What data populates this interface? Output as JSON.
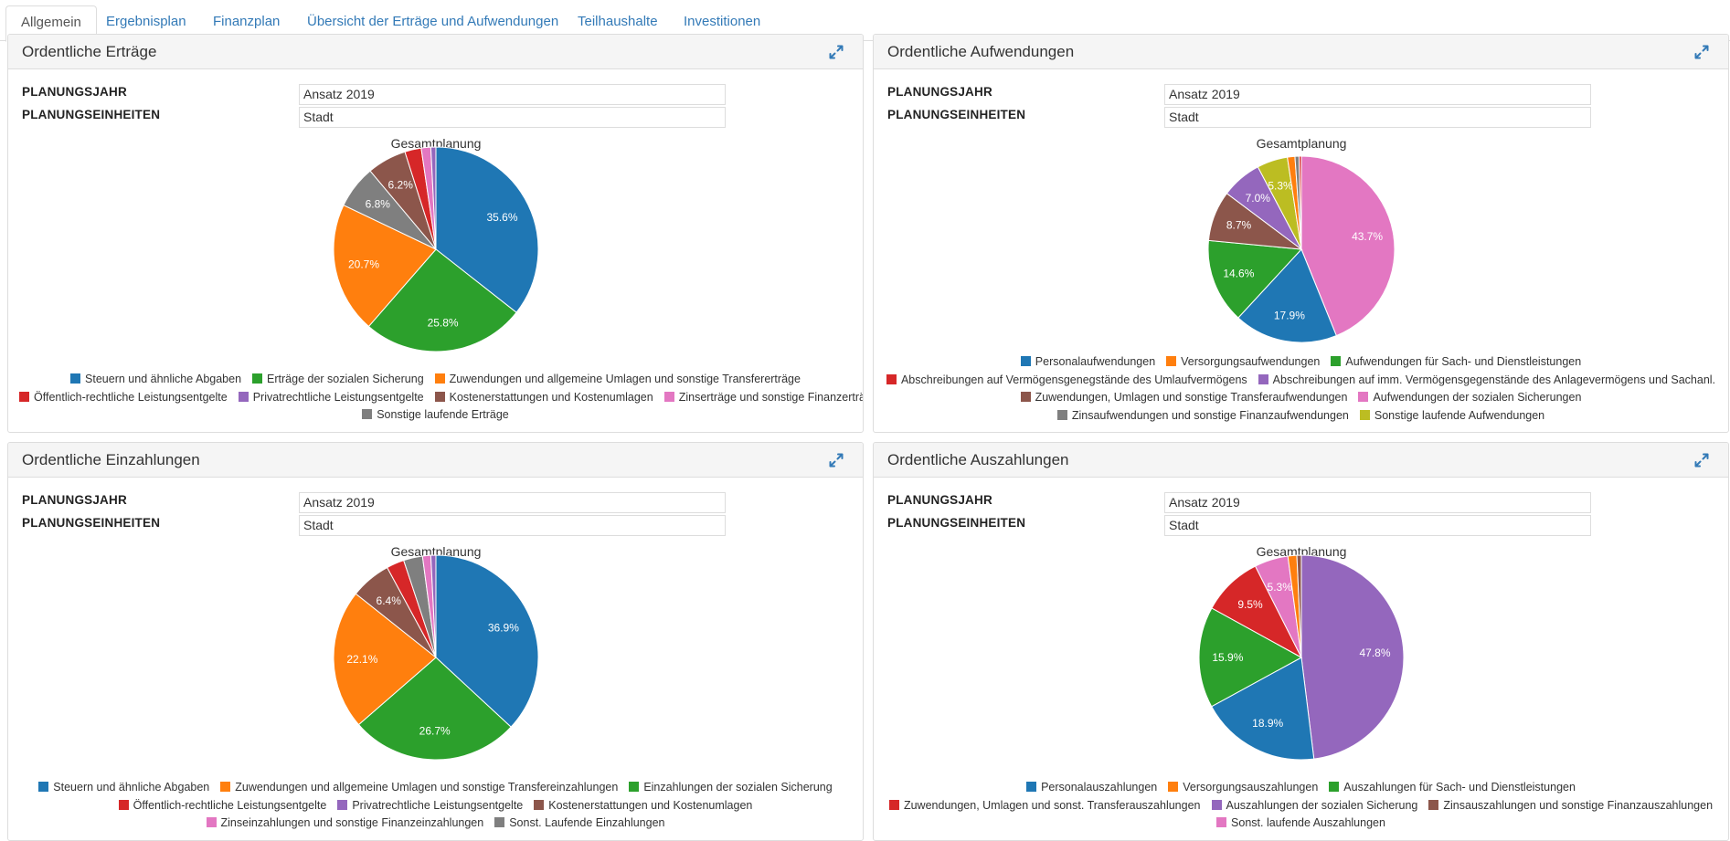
{
  "tabs": [
    {
      "label": "Allgemein",
      "active": true
    },
    {
      "label": "Ergebnisplan",
      "active": false
    },
    {
      "label": "Finanzplan",
      "active": false
    },
    {
      "label": "Übersicht der Erträge und Aufwendungen",
      "active": false
    },
    {
      "label": "Teilhaushalte",
      "active": false
    },
    {
      "label": "Investitionen",
      "active": false
    }
  ],
  "fields": {
    "year_label": "PLANUNGSJAHR",
    "units_label": "PLANUNGSEINHEITEN"
  },
  "icons": {
    "expand": "expand-arrows-icon"
  },
  "colors": {
    "accent": "#337ab7"
  },
  "panels": [
    {
      "title": "Ordentliche Erträge",
      "year_value": "Ansatz 2019",
      "units_value": "Stadt",
      "chart_data": {
        "type": "pie",
        "title": "Gesamtplanung",
        "legend_rows": [
          [
            0,
            1,
            2
          ],
          [
            3,
            4,
            5,
            6
          ],
          [
            7
          ]
        ],
        "slices": [
          {
            "name": "Steuern und ähnliche Abgaben",
            "value": 35.6,
            "label": "35.6%",
            "color": "#1f77b4"
          },
          {
            "name": "Erträge der sozialen Sicherung",
            "value": 25.8,
            "label": "25.8%",
            "color": "#2ca02c"
          },
          {
            "name": "Zuwendungen und allgemeine Umlagen und sonstige Transfererträge",
            "value": 20.7,
            "label": "20.7%",
            "color": "#ff7f0e"
          },
          {
            "name": "Öffentlich-rechtliche Leistungsentgelte",
            "value": 2.6,
            "label": "",
            "color": "#d62728"
          },
          {
            "name": "Privatrechtliche Leistungsentgelte",
            "value": 0.8,
            "label": "",
            "color": "#9467bd"
          },
          {
            "name": "Kostenerstattungen und Kostenumlagen",
            "value": 6.2,
            "label": "6.2%",
            "color": "#8c564b"
          },
          {
            "name": "Zinserträge und sonstige Finanzerträge",
            "value": 1.5,
            "label": "",
            "color": "#e377c2"
          },
          {
            "name": "Sonstige laufende Erträge",
            "value": 6.8,
            "label": "6.8%",
            "color": "#7f7f7f"
          }
        ],
        "slice_order": [
          0,
          1,
          2,
          7,
          5,
          3,
          6,
          4
        ]
      }
    },
    {
      "title": "Ordentliche Aufwendungen",
      "year_value": "Ansatz 2019",
      "units_value": "Stadt",
      "chart_data": {
        "type": "pie",
        "title": "Gesamtplanung",
        "legend_rows": [
          [
            0,
            1,
            2
          ],
          [
            3,
            4
          ],
          [
            5,
            6
          ],
          [
            7,
            8
          ]
        ],
        "slices": [
          {
            "name": "Personalaufwendungen",
            "value": 17.9,
            "label": "17.9%",
            "color": "#1f77b4"
          },
          {
            "name": "Versorgungsaufwendungen",
            "value": 1.3,
            "label": "",
            "color": "#ff7f0e"
          },
          {
            "name": "Aufwendungen für Sach- und Dienstleistungen",
            "value": 14.6,
            "label": "14.6%",
            "color": "#2ca02c"
          },
          {
            "name": "Abschreibungen auf Vermögensgenegstände des Umlaufvermögens",
            "value": 0.4,
            "label": "",
            "color": "#d62728"
          },
          {
            "name": "Abschreibungen auf imm. Vermögensgegenstände des Anlagevermögens und Sachanl.",
            "value": 7.0,
            "label": "7.0%",
            "color": "#9467bd"
          },
          {
            "name": "Zuwendungen, Umlagen und sonstige Transferaufwendungen",
            "value": 8.7,
            "label": "8.7%",
            "color": "#8c564b"
          },
          {
            "name": "Aufwendungen der sozialen Sicherungen",
            "value": 43.7,
            "label": "43.7%",
            "color": "#e377c2"
          },
          {
            "name": "Zinsaufwendungen und sonstige Finanzaufwendungen",
            "value": 0.7,
            "label": "",
            "color": "#7f7f7f"
          },
          {
            "name": "Sonstige laufende Aufwendungen",
            "value": 5.3,
            "label": "5.3%",
            "color": "#bcbd22"
          }
        ],
        "slice_order": [
          6,
          0,
          2,
          5,
          4,
          8,
          1,
          7,
          3
        ]
      }
    },
    {
      "title": "Ordentliche Einzahlungen",
      "year_value": "Ansatz 2019",
      "units_value": "Stadt",
      "chart_data": {
        "type": "pie",
        "title": "Gesamtplanung",
        "legend_rows": [
          [
            0,
            1,
            2
          ],
          [
            3,
            4,
            5
          ],
          [
            6,
            7
          ]
        ],
        "slices": [
          {
            "name": "Steuern und ähnliche Abgaben",
            "value": 36.9,
            "label": "36.9%",
            "color": "#1f77b4"
          },
          {
            "name": "Zuwendungen und allgemeine Umlagen und sonstige Transfereinzahlungen",
            "value": 22.1,
            "label": "22.1%",
            "color": "#ff7f0e"
          },
          {
            "name": "Einzahlungen der sozialen Sicherung",
            "value": 26.7,
            "label": "26.7%",
            "color": "#2ca02c"
          },
          {
            "name": "Öffentlich-rechtliche Leistungsentgelte",
            "value": 2.8,
            "label": "",
            "color": "#d62728"
          },
          {
            "name": "Privatrechtliche Leistungsentgelte",
            "value": 0.8,
            "label": "",
            "color": "#9467bd"
          },
          {
            "name": "Kostenerstattungen und Kostenumlagen",
            "value": 6.4,
            "label": "6.4%",
            "color": "#8c564b"
          },
          {
            "name": "Zinseinzahlungen und sonstige Finanzeinzahlungen",
            "value": 1.3,
            "label": "",
            "color": "#e377c2"
          },
          {
            "name": "Sonst. Laufende Einzahlungen",
            "value": 3.0,
            "label": "",
            "color": "#7f7f7f"
          }
        ],
        "slice_order": [
          0,
          2,
          1,
          5,
          3,
          7,
          6,
          4
        ]
      }
    },
    {
      "title": "Ordentliche Auszahlungen",
      "year_value": "Ansatz 2019",
      "units_value": "Stadt",
      "chart_data": {
        "type": "pie",
        "title": "Gesamtplanung",
        "legend_rows": [
          [
            0,
            1,
            2
          ],
          [
            3,
            4,
            5
          ],
          [
            6
          ]
        ],
        "slices": [
          {
            "name": "Personalauszahlungen",
            "value": 18.9,
            "label": "18.9%",
            "color": "#1f77b4"
          },
          {
            "name": "Versorgungsauszahlungen",
            "value": 1.4,
            "label": "",
            "color": "#ff7f0e"
          },
          {
            "name": "Auszahlungen für Sach- und Dienstleistungen",
            "value": 15.9,
            "label": "15.9%",
            "color": "#2ca02c"
          },
          {
            "name": "Zuwendungen, Umlagen und sonst. Transferauszahlungen",
            "value": 9.5,
            "label": "9.5%",
            "color": "#d62728"
          },
          {
            "name": "Auszahlungen der sozialen Sicherung",
            "value": 47.8,
            "label": "47.8%",
            "color": "#9467bd"
          },
          {
            "name": "Zinsauszahlungen und sonstige Finanzauszahlungen",
            "value": 0.7,
            "label": "",
            "color": "#8c564b"
          },
          {
            "name": "Sonst. laufende Auszahlungen",
            "value": 5.3,
            "label": "5.3%",
            "color": "#e377c2"
          }
        ],
        "slice_order": [
          4,
          0,
          2,
          3,
          6,
          1,
          5
        ]
      }
    }
  ]
}
